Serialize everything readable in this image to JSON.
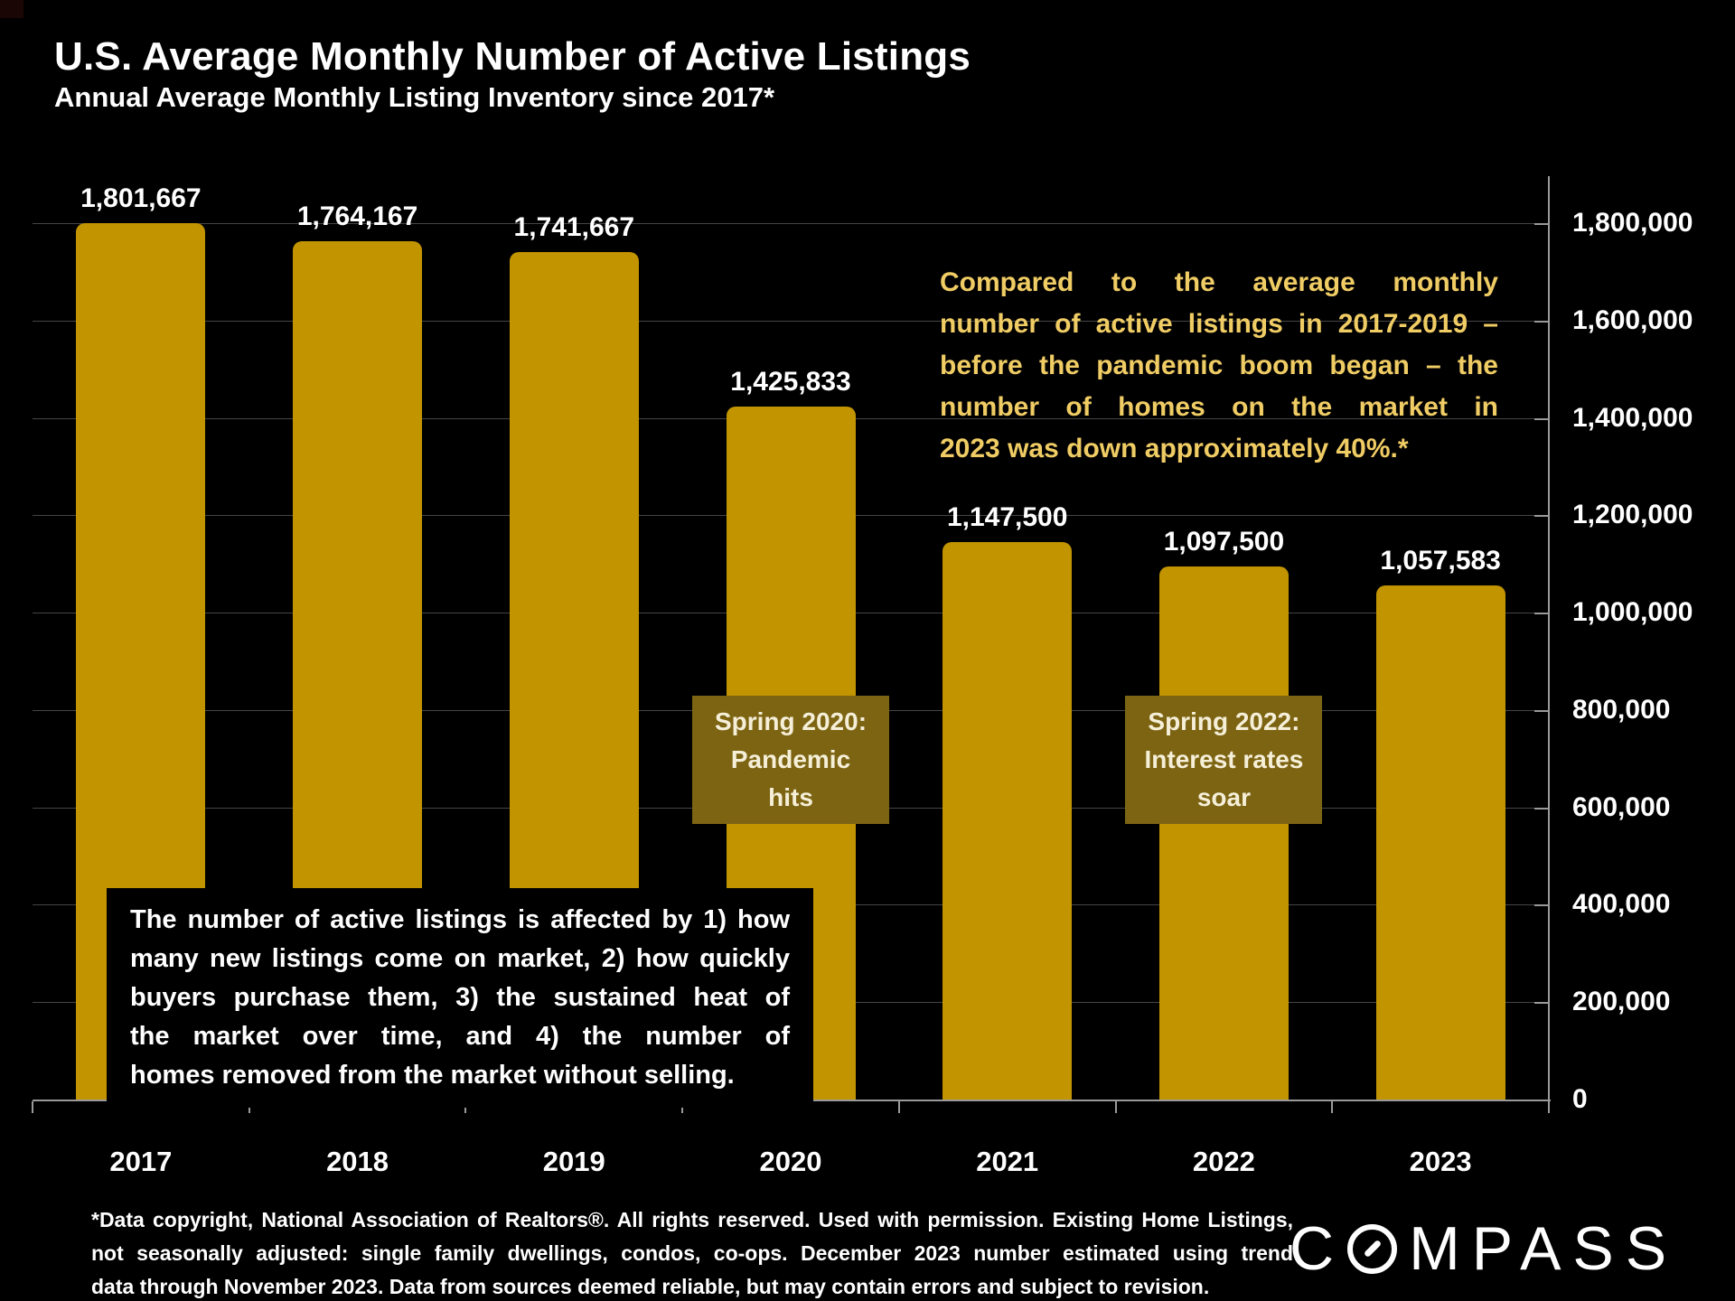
{
  "slide": {
    "title": "U.S. Average Monthly Number of Active Listings",
    "subtitle": "Annual Average Monthly Listing Inventory since 2017*",
    "background_color": "#000000"
  },
  "chart_data": {
    "type": "bar",
    "title": "U.S. Average Monthly Number of Active Listings",
    "subtitle": "Annual Average Monthly Listing Inventory since 2017*",
    "categories": [
      "2017",
      "2018",
      "2019",
      "2020",
      "2021",
      "2022",
      "2023"
    ],
    "values": [
      1801667,
      1764167,
      1741667,
      1425833,
      1147500,
      1097500,
      1057583
    ],
    "value_labels": [
      "1,801,667",
      "1,764,167",
      "1,741,667",
      "1,425,833",
      "1,147,500",
      "1,097,500",
      "1,057,583"
    ],
    "ylim": [
      0,
      1800000
    ],
    "y_tick_values": [
      0,
      200000,
      400000,
      600000,
      800000,
      1000000,
      1200000,
      1400000,
      1600000,
      1800000
    ],
    "y_tick_labels": [
      "0",
      "200,000",
      "400,000",
      "600,000",
      "800,000",
      "1,000,000",
      "1,200,000",
      "1,400,000",
      "1,600,000",
      "1,800,000"
    ],
    "y_axis_side": "right",
    "grid": true,
    "legend": false,
    "bar_color": "#C29400",
    "grid_color": "#454545",
    "axis_color": "#9a9a9a",
    "label_color": "#ffffff"
  },
  "annotations": [
    {
      "bar_index": 3,
      "lines": [
        "Spring 2020:",
        "Pandemic",
        "hits"
      ],
      "bg_color": "#7C6413",
      "text_color": "#F6EFD8"
    },
    {
      "bar_index": 5,
      "lines": [
        "Spring 2022:",
        "Interest rates",
        "soar"
      ],
      "bg_color": "#7C6413",
      "text_color": "#F6EFD8"
    }
  ],
  "callout_yellow": {
    "color": "#F0CC64",
    "lines": [
      "Compared to the average monthly",
      "number of active listings in 2017-2019 –",
      "before the pandemic boom began – the",
      "number of homes on the market in",
      "2023 was down approximately 40%.*"
    ]
  },
  "info_box": {
    "lines": [
      "The number of active listings is affected by 1) how",
      "many new listings come on market, 2) how quickly",
      "buyers purchase them, 3) the sustained heat of",
      "the market over time, and 4) the number of",
      "homes removed from the market without selling."
    ]
  },
  "footnote": {
    "lines": [
      "*Data copyright, National Association of Realtors®. All rights reserved. Used with permission. Existing Home Listings,",
      "not seasonally adjusted:  single family dwellings, condos, co-ops. December 2023 number estimated using trend",
      "data through November 2023. Data from sources deemed reliable, but may contain errors and subject to revision."
    ]
  },
  "logo": {
    "name": "COMPASS",
    "text_before_symbol": "C",
    "text_after_symbol": "MPASS"
  }
}
